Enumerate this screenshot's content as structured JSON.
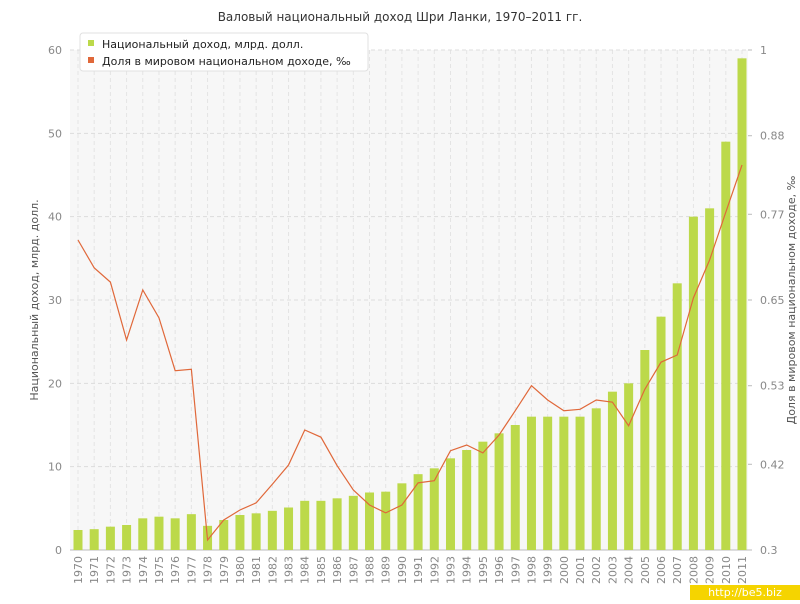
{
  "chart_data": {
    "type": "bar_line",
    "title": "Валовый национальный доход Шри Ланки, 1970–2011 гг.",
    "y_label": "Национальный доход, млрд. долл.",
    "y2_label": "Доля в мировом национальном доходе, ‰",
    "watermark": "http://be5.biz",
    "categories": [
      "1970",
      "1971",
      "1972",
      "1973",
      "1974",
      "1975",
      "1976",
      "1977",
      "1978",
      "1979",
      "1980",
      "1981",
      "1982",
      "1983",
      "1984",
      "1985",
      "1986",
      "1987",
      "1988",
      "1989",
      "1990",
      "1991",
      "1992",
      "1993",
      "1994",
      "1995",
      "1996",
      "1997",
      "1998",
      "1999",
      "2000",
      "2001",
      "2002",
      "2003",
      "2004",
      "2005",
      "2006",
      "2007",
      "2008",
      "2009",
      "2010",
      "2011"
    ],
    "series": [
      {
        "name": "Национальный доход, млрд. долл.",
        "type": "bar",
        "color": "#bcd94a",
        "values": [
          2.4,
          2.5,
          2.8,
          3.0,
          3.8,
          4.0,
          3.8,
          4.3,
          2.9,
          3.6,
          4.2,
          4.4,
          4.7,
          5.1,
          5.9,
          5.9,
          6.2,
          6.5,
          6.9,
          7.0,
          8.0,
          9.1,
          9.8,
          11.0,
          12.0,
          13.0,
          14.0,
          15.0,
          16.0,
          16.0,
          16.0,
          16.0,
          17.0,
          19.0,
          20.0,
          24.0,
          28.0,
          32.0,
          40.0,
          41.0,
          49.0,
          59.0
        ]
      },
      {
        "name": "Доля в мировом национальном доходе, ‰",
        "type": "line",
        "axis": "y2",
        "color": "#e0683a",
        "values": [
          0.734,
          0.695,
          0.675,
          0.594,
          0.664,
          0.625,
          0.551,
          0.553,
          0.314,
          0.342,
          0.356,
          0.366,
          0.392,
          0.419,
          0.468,
          0.458,
          0.418,
          0.384,
          0.363,
          0.352,
          0.363,
          0.394,
          0.397,
          0.439,
          0.447,
          0.436,
          0.461,
          0.495,
          0.53,
          0.51,
          0.495,
          0.497,
          0.51,
          0.507,
          0.474,
          0.525,
          0.563,
          0.573,
          0.653,
          0.706,
          0.773,
          0.839
        ]
      }
    ],
    "ylim": [
      0,
      60
    ],
    "yticks": [
      0,
      10,
      20,
      30,
      40,
      50,
      60
    ],
    "y2lim": [
      0.3,
      1
    ],
    "y2ticks": [
      0.3,
      0.42,
      0.53,
      0.65,
      0.77,
      0.88,
      1
    ],
    "grid": true,
    "legend": "top-left"
  }
}
